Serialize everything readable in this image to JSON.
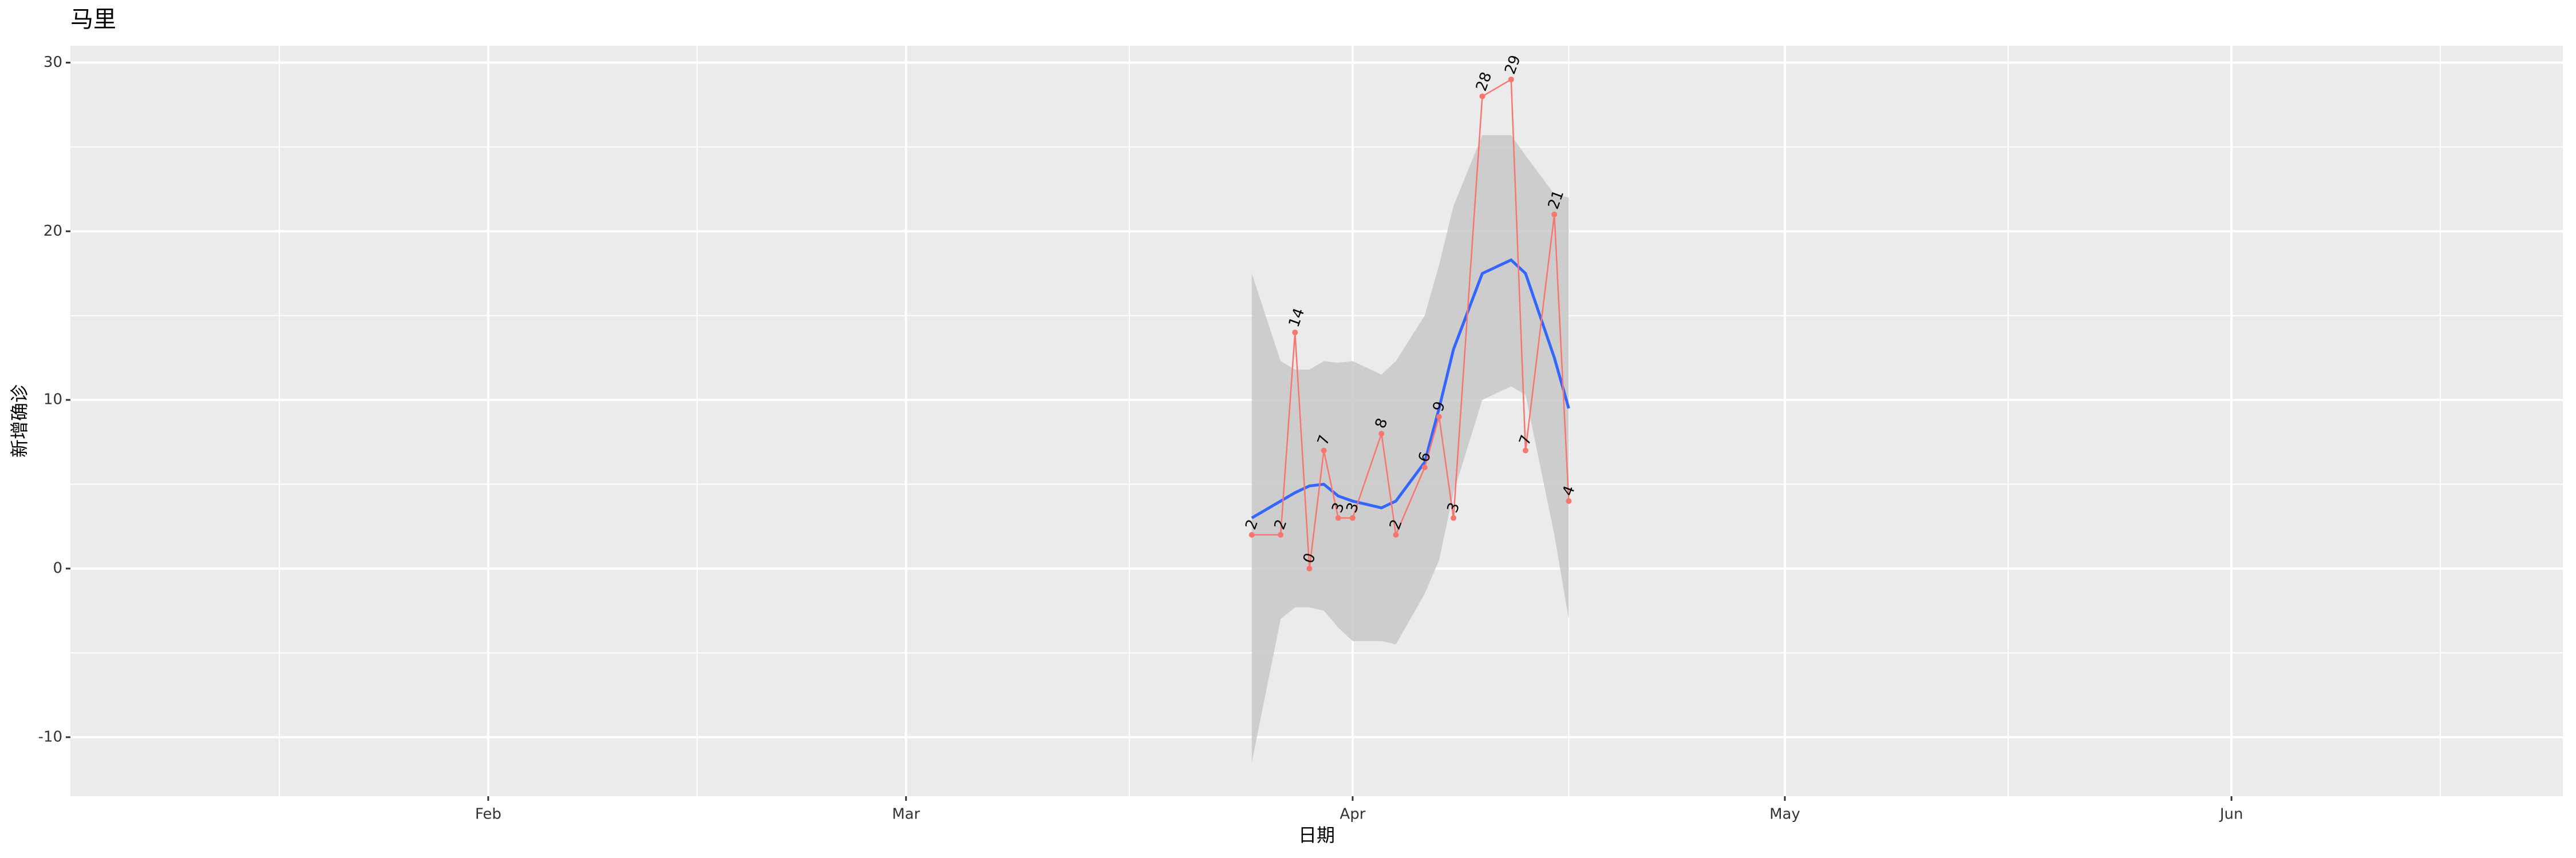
{
  "chart_data": {
    "type": "line",
    "title": "马里",
    "x_label": "日期",
    "y_label": "新增确诊",
    "x": [
      "03-25",
      "03-27",
      "03-28",
      "03-29",
      "03-30",
      "03-31",
      "04-01",
      "04-03",
      "04-04",
      "04-06",
      "04-07",
      "04-08",
      "04-10",
      "04-12",
      "04-13",
      "04-15",
      "04-16"
    ],
    "values": [
      2,
      2,
      14,
      0,
      7,
      3,
      3,
      8,
      2,
      6,
      9,
      3,
      28,
      29,
      7,
      21,
      4
    ],
    "color": "#f8766d",
    "smooth": {
      "color": "#3366ff",
      "band_color": "#c8c8c8",
      "x": [
        "03-25",
        "03-27",
        "03-28",
        "03-29",
        "03-30",
        "03-31",
        "04-01",
        "04-03",
        "04-04",
        "04-06",
        "04-07",
        "04-08",
        "04-10",
        "04-12",
        "04-13",
        "04-15",
        "04-16"
      ],
      "y": [
        3.0,
        4.0,
        4.5,
        4.9,
        5.0,
        4.3,
        4.0,
        3.6,
        4.0,
        6.3,
        9.5,
        13,
        17.5,
        18.3,
        17.5,
        12.5,
        9.5
      ],
      "ymin": [
        -11.5,
        -3,
        -2.3,
        -2.3,
        -2.5,
        -3.5,
        -4.3,
        -4.3,
        -4.5,
        -1.5,
        0.5,
        4.5,
        10,
        10.8,
        10.3,
        2,
        -3
      ],
      "ymax": [
        17.5,
        12.3,
        11.8,
        11.8,
        12.3,
        12.2,
        12.3,
        11.5,
        12.3,
        15,
        18,
        21.5,
        25.7,
        25.7,
        24.5,
        22.2,
        22
      ]
    },
    "xlim": [
      "01-03",
      "06-24"
    ],
    "xticks": [
      {
        "value": "02-01",
        "label": "Feb"
      },
      {
        "value": "03-01",
        "label": "Mar"
      },
      {
        "value": "04-01",
        "label": "Apr"
      },
      {
        "value": "05-01",
        "label": "May"
      },
      {
        "value": "06-01",
        "label": "Jun"
      }
    ],
    "ylim": [
      -13.5,
      31
    ],
    "yticks": [
      -10,
      0,
      10,
      20,
      30
    ],
    "grid": true
  }
}
